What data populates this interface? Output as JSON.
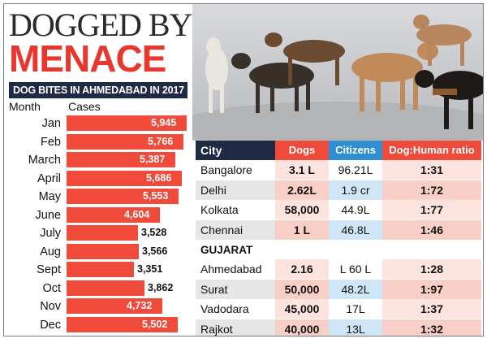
{
  "headline": {
    "line1": "DOGGED BY",
    "line2": "MENACE"
  },
  "colors": {
    "accent": "#ef4a3a",
    "navy": "#1f2a44",
    "blue": "#2f8fd0"
  },
  "chart_data": {
    "type": "bar",
    "orientation": "horizontal",
    "title": "DOG BITES IN AHMEDABAD IN 2017",
    "category_label": "Month",
    "value_label": "Cases",
    "categories": [
      "Jan",
      "Feb",
      "March",
      "April",
      "May",
      "June",
      "July",
      "Aug",
      "Sept",
      "Oct",
      "Nov",
      "Dec"
    ],
    "values": [
      5945,
      5766,
      5387,
      5686,
      5553,
      4604,
      3528,
      3566,
      3351,
      3862,
      4732,
      5502
    ],
    "value_labels": [
      "5,945",
      "5,766",
      "5,387",
      "5,686",
      "5,553",
      "4,604",
      "3,528",
      "3,566",
      "3,351",
      "3,862",
      "4,732",
      "5,502"
    ],
    "legend": "none",
    "grid": false
  },
  "table": {
    "headers": [
      "City",
      "Dogs",
      "Citizens",
      "Dog:Human ratio"
    ],
    "groups": [
      {
        "title": "",
        "rows": [
          [
            "Bangalore",
            "3.1 L",
            "96.21L",
            "1:31"
          ],
          [
            "Delhi",
            "2.62L",
            "1.9 cr",
            "1:72"
          ],
          [
            "Kolkata",
            "58,000",
            "44.9L",
            "1:77"
          ],
          [
            "Chennai",
            "1 L",
            "46.8L",
            "1:46"
          ]
        ]
      },
      {
        "title": "GUJARAT",
        "rows": [
          [
            "Ahmedabad",
            "2.16",
            "L 60 L",
            "1:28"
          ],
          [
            "Surat",
            "50,000",
            "48.2L",
            "1:97"
          ],
          [
            "Vadodara",
            "45,000",
            "17L",
            "1:37"
          ],
          [
            "Rajkot",
            "40,000",
            "13L",
            "1:32"
          ]
        ]
      }
    ]
  }
}
